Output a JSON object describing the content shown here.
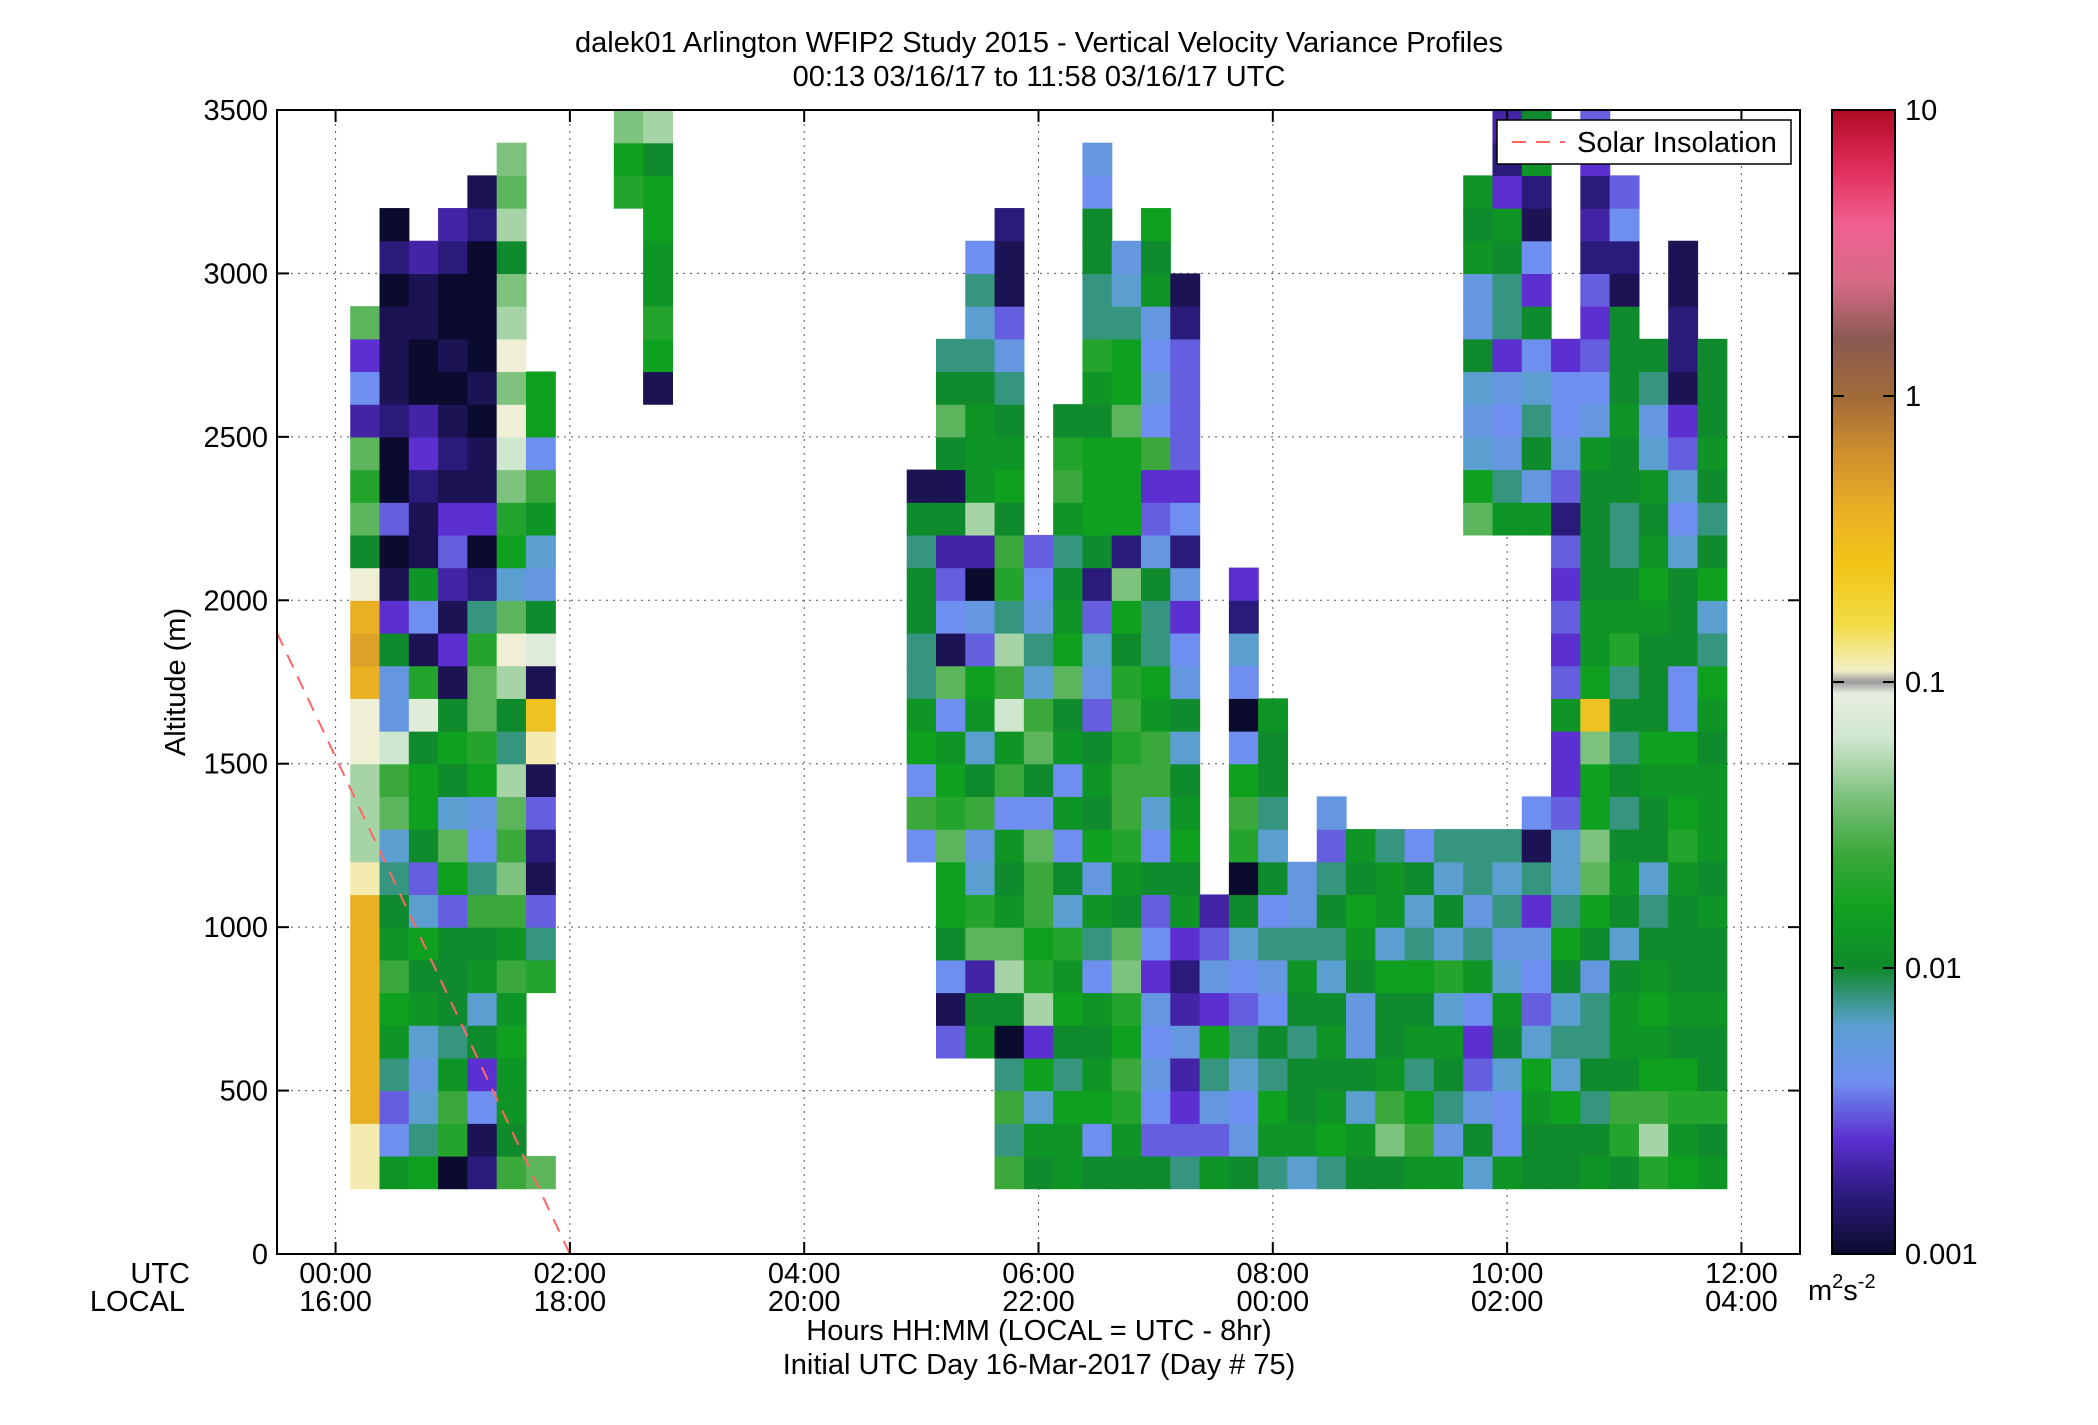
{
  "chart_data": {
    "type": "heatmap",
    "title": "dalek01 Arlington WFIP2 Study 2015 - Vertical Velocity Variance Profiles",
    "subtitle": "00:13 03/16/17 to 11:58 03/16/17  UTC",
    "ylabel": "Altitude (m)",
    "xlabel_lines": [
      "Hours HH:MM  (LOCAL = UTC - 8hr)",
      "Initial UTC Day 16-Mar-2017 (Day # 75)"
    ],
    "x_row_labels": [
      "UTC",
      "LOCAL"
    ],
    "xlim_hours": [
      -0.5,
      12.5
    ],
    "ylim": [
      0,
      3500
    ],
    "x_ticks": [
      {
        "value": 0,
        "utc": "00:00",
        "local": "16:00"
      },
      {
        "value": 2,
        "utc": "02:00",
        "local": "18:00"
      },
      {
        "value": 4,
        "utc": "04:00",
        "local": "20:00"
      },
      {
        "value": 6,
        "utc": "06:00",
        "local": "22:00"
      },
      {
        "value": 8,
        "utc": "08:00",
        "local": "00:00"
      },
      {
        "value": 10,
        "utc": "10:00",
        "local": "02:00"
      },
      {
        "value": 12,
        "utc": "12:00",
        "local": "04:00"
      }
    ],
    "y_ticks": [
      {
        "value": 0,
        "label": "0"
      },
      {
        "value": 500,
        "label": "500"
      },
      {
        "value": 1000,
        "label": "1000"
      },
      {
        "value": 1500,
        "label": "1500"
      },
      {
        "value": 2000,
        "label": "2000"
      },
      {
        "value": 2500,
        "label": "2500"
      },
      {
        "value": 3000,
        "label": "3000"
      },
      {
        "value": 3500,
        "label": "3500"
      }
    ],
    "grid": true,
    "legend": {
      "position": "top-right",
      "label": "Solar Insolation",
      "color": "#ff6666"
    },
    "solar_insolation_line": [
      [
        -0.5,
        1900
      ],
      [
        2.0,
        0
      ]
    ],
    "colorbar": {
      "scale": "log",
      "min": 0.001,
      "max": 10,
      "ticks": [
        {
          "value": 0.001,
          "label": "0.001"
        },
        {
          "value": 0.01,
          "label": "0.01"
        },
        {
          "value": 0.1,
          "label": "0.1"
        },
        {
          "value": 1,
          "label": "1"
        },
        {
          "value": 10,
          "label": "10"
        }
      ],
      "unit_base": "m",
      "unit_exp1": "2",
      "unit_mid": "s",
      "unit_exp2": "-2"
    },
    "grid_spec": {
      "time_start_hours": 0.25,
      "time_step_hours": 0.25,
      "alt_start_m": 200,
      "alt_step_m": 100,
      "value_unit": "log10(m2 s-2)"
    },
    "profiles": [
      {
        "hour": 0.25,
        "values": "-0.9,-0.9,-0.4,-0.4,-0.4,-0.4,-0.4,-0.4,-0.4,-0.9,-1.3,-1.3,-1.3,-1.0,-1.0,-0.4,-0.3,-0.4,-1.0,-2.0,-1.5,-1.7,-1.5,-2.7,-2.4,-2.6,-1.5,,,,,,,,,,"
      },
      {
        "hour": 0.5,
        "values": "-1.9,-2.4,-2.5,-2.1,-1.9,-1.8,-1.6,-1.9,-2.0,-2.1,-2.2,-1.5,-1.6,-1.2,-2.3,-2.3,-2.0,-2.6,-2.9,-3.0,-2.5,-3.0,-3.0,-2.8,-2.9,-2.9,-2.9,-3.0,-2.8,-3.0,,,,,,,"
      },
      {
        "hour": 0.75,
        "values": "-1.8,-2.1,-2.2,-2.3,-2.2,-1.9,-2.0,-1.8,-2.2,-2.5,-2.0,-1.8,-1.8,-2.0,-1.1,-1.7,-2.9,-2.4,-1.9,-2.9,-2.9,-2.8,-2.6,-2.7,-3.0,-3.0,-2.9,-2.9,-2.7,,,,,,,,"
      },
      {
        "hour": 1.0,
        "values": "-3.0,-1.7,-1.6,-1.9,-2.1,-2.0,-2.0,-2.0,-2.5,-1.8,-1.5,-2.2,-2.0,-1.8,-2.0,-2.9,-2.6,-2.9,-2.7,-2.5,-2.6,-2.9,-2.8,-2.9,-3.0,-2.9,-3.0,-3.0,-2.8,-2.7,,,,,,,"
      },
      {
        "hour": 1.25,
        "values": "-2.8,-2.9,-2.4,-2.6,-2.0,-2.2,-1.9,-2.0,-1.6,-2.1,-2.4,-2.3,-1.8,-1.7,-1.5,-1.5,-1.7,-2.1,-2.8,-3.0,-2.6,-2.9,-2.9,-3.0,-2.9,-3.0,-3.0,-3.0,-3.0,-2.8,-2.9,,,,,,"
      },
      {
        "hour": 1.5,
        "values": "-1.6,-2.0,-1.9,-1.9,-1.8,-1.9,-1.6,-1.9,-1.6,-1.4,-1.6,-1.5,-1.3,-2.1,-2.0,-1.3,-1.0,-1.5,-2.2,-1.8,-1.7,-1.4,-1.2,-1.0,-1.4,-1.0,-1.3,-1.4,-2.0,-1.3,-1.5,-1.4,,,,,"
      },
      {
        "hour": 1.75,
        "values": "-1.5,,,,,,-1.7,-2.1,-2.5,-2.9,-2.8,-2.5,-2.9,-0.9,-0.5,-2.9,-1.1,-2.0,-2.3,-2.2,-1.9,-1.6,-2.4,-1.8,-1.8,,,,,,,,,,,,"
      },
      {
        "hour": 2.25,
        "values": ",,,,,,,,,,,,,,,,,,,,,,,,,,,,,,,,,,-1.9,-1.4"
      },
      {
        "hour": 2.5,
        "values": ",,,,,,,,,,,,,,,,,,,,,,,,,,,,,,-1.7,-1.8,-1.4,-1.3,-1.3,-1.3"
      },
      {
        "hour": 2.75,
        "values": ",,,,,,,,,,,,,,,,,,,,,,,,-2.9,-1.8,-1.7,-1.9,-1.9,-1.8,-1.8,-2.0,-1.3,-1.4,-1.2,-1.3"
      },
      {
        "hour": 5.0,
        "values": ",,,,,,,,,,-2.4,-1.6,-2.4,-1.8,-1.9,-2.1,-2.1,-2.0,-2.0,-2.1,-2.0,-2.9,,,,,,,,,,,,,,"
      },
      {
        "hour": 5.25,
        "values": ",,,,-2.5,-2.9,-2.4,-2.0,-1.8,-1.8,-1.5,-1.7,-1.8,-1.9,-2.4,-1.5,-2.9,-2.4,-2.5,-2.7,-2.0,-2.9,-2.0,-1.5,-2.0,-2.1,,,,,,,,,,"
      },
      {
        "hour": 5.5,
        "values": ",,,,-1.9,-2.0,-2.7,-1.5,-1.7,-2.2,-2.3,-1.6,-2.0,-2.2,-1.9,-1.8,-2.5,-2.3,-3.0,-2.7,-1.3,-1.9,-1.9,-1.9,-2.0,-2.1,-2.2,-2.1,-2.4,,,,,,,"
      },
      {
        "hour": 5.75,
        "values": "-1.6,-2.1,-1.6,-2.1,-3.0,-2.0,-1.3,-1.5,-1.9,-2.0,-1.9,-2.4,-1.6,-1.9,-1.2,-1.6,-1.3,-2.1,-1.7,-1.6,-2.0,-1.8,-1.9,-2.0,-2.1,-2.3,-2.5,-2.9,-2.9,-2.8,,,,,,"
      },
      {
        "hour": 6.0,
        "values": "-2.0,-1.9,-2.2,-1.8,-2.6,-1.3,-1.7,-1.8,-1.6,-1.6,-1.5,-2.4,-2.0,-1.5,-1.6,-2.2,-2.1,-2.3,-2.4,-2.5,,,,,,,,,,,,,,,,"
      },
      {
        "hour": 6.25,
        "values": "-1.9,-1.9,-1.8,-2.1,-2.0,-1.8,-1.9,-1.7,-2.2,-2.0,-2.4,-1.9,-2.4,-1.9,-2.0,-1.5,-1.8,-1.9,-2.0,-2.1,-1.9,-1.6,-1.7,-2.0,,,,,,,,,,,,"
      },
      {
        "hour": 6.5,
        "values": "-2.0,-2.4,-1.8,-1.9,-2.0,-1.9,-2.4,-2.1,-1.9,-2.3,-1.8,-2.0,-1.9,-2.0,-2.5,-2.3,-2.2,-2.5,-2.8,-2.0,-1.8,-1.8,-1.8,-2.0,-1.9,-1.7,-2.1,-2.1,-2.0,-2.0,-2.4,-2.3,,,,"
      },
      {
        "hour": 6.75,
        "values": "-2.0,-1.9,-1.7,-1.6,-1.8,-1.7,-1.4,-1.5,-2.0,-1.9,-1.7,-1.6,-1.6,-1.7,-1.6,-1.7,-2.0,-1.8,-1.4,-2.8,-1.8,-1.8,-1.8,-1.5,-1.8,-1.8,-2.1,-2.2,-2.3,,,,,,,"
      },
      {
        "hour": 7.0,
        "values": "-2.0,-2.5,-2.4,-2.3,-2.4,-2.3,-2.6,-2.4,-2.5,-2.0,-2.4,-2.2,-1.6,-1.6,-1.9,-1.8,-2.1,-2.1,-2.0,-2.3,-2.5,-2.6,-1.6,-2.4,-2.3,-2.4,-2.3,-1.9,-2.0,-1.8,,,,,,"
      },
      {
        "hour": 7.25,
        "values": "-2.1,-2.5,-2.6,-2.7,-2.3,-2.7,-2.8,-2.6,-1.9,-2.0,-1.8,-1.9,-2.0,-2.2,-2.0,-2.3,-2.4,-2.6,-2.3,-2.8,-2.4,-2.6,-2.5,-2.5,-2.5,-2.5,-2.8,-2.9,,,,,,,,"
      },
      {
        "hour": 7.5,
        "values": "-1.9,-2.5,-2.3,-2.1,-1.8,-2.6,-2.3,-2.5,-2.7,,,,,,,,,,,,,,,,,,,,,,,,,,"
      },
      {
        "hour": 7.75,
        "values": "-2.0,-2.3,-2.4,-2.2,-2.1,-2.5,-2.4,-2.2,-2.0,-3.0,-1.7,-1.6,-1.8,-2.4,-3.0,-2.4,-2.2,-2.8,-2.6,,,,,,,,,,,,,,,,"
      },
      {
        "hour": 8.0,
        "values": "-2.1,-1.9,-1.8,-2.1,-2.0,-2.4,-2.3,-2.1,-2.4,-2.0,-2.2,-2.1,-2.0,-2.0,-1.9,,,,,,,,,,,,,,,,,,,,,-2.0"
      },
      {
        "hour": 8.25,
        "values": "-2.2,-1.9,-2.0,-2.0,-2.1,-2.0,-1.9,-2.1,-2.3,-2.3,,,,,,,,,,,,,,,,,,,,,,,,,,-2.4"
      },
      {
        "hour": 8.5,
        "values": "-2.1,-1.8,-1.9,-2.0,-1.9,-2.0,-2.2,-2.1,-2.0,-2.1,-2.5,-2.3,,,,,,,,,,,,,,,,,,,,,,,,"
      },
      {
        "hour": 8.75,
        "values": "-2.0,-1.9,-2.2,-2.0,-2.3,-2.3,-2.0,-1.9,-1.8,-2.0,-1.9,,,,,,,,,,,,,,,,,,,,,,,,,"
      },
      {
        "hour": 9.0,
        "values": "-2.0,-1.4,-1.6,-1.9,-2.0,-2.0,-1.8,-2.2,-1.9,-1.9,-2.1,,,,,,,,,,,,,,,,,,,,,,,,,"
      },
      {
        "hour": 9.25,
        "values": "-1.9,-1.6,-1.8,-2.1,-1.9,-2.0,-1.8,-2.1,-2.2,-2.0,-2.4,,,,,,,,,,,,,,,,,,,,,,,,,"
      },
      {
        "hour": 9.5,
        "values": "-1.9,-2.3,-2.1,-2.0,-1.9,-2.2,-1.7,-2.2,-2.0,-2.2,-2.1,,,,,,,,,,,,,,,,,,,,,,,,,"
      },
      {
        "hour": 9.75,
        "values": "-2.2,-2.0,-2.3,-2.5,-2.6,-2.4,-1.9,-2.1,-2.3,-2.1,-2.1,,,,,,,,,,-1.5,-1.8,-2.2,-2.3,-2.2,-2.0,-2.3,-2.3,-1.9,-2.0,-1.9,,,,,"
      },
      {
        "hour": 10.0,
        "values": "-1.9,-2.4,-2.4,-2.2,-2.0,-1.9,-2.2,-2.3,-2.1,-2.2,-2.1,,,,,,,,,,-1.9,-2.1,-2.3,-2.4,-2.3,-2.6,-2.1,-2.1,-2.0,-1.9,-2.6,-2.8,-2.7,,,,"
      },
      {
        "hour": 10.25,
        "values": "-2.0,-2.0,-1.9,-1.8,-2.2,-2.5,-2.4,-2.3,-2.6,-2.1,-2.9,-2.4,,,,,,,,,-1.9,-2.3,-2.0,-2.1,-2.2,-2.4,-2.0,-2.6,-2.4,-2.9,-2.8,-1.9,-2.0,-1.9,,"
      },
      {
        "hour": 10.5,
        "values": "-2.0,-2.0,-1.8,-2.2,-2.1,-2.2,-2.0,-1.8,-2.1,-2.2,-2.2,-2.5,-2.6,-2.6,-1.9,-2.5,-2.6,-2.5,-2.6,-2.5,-2.8,-2.5,-2.3,-2.4,-2.4,-2.6,,,,,,,,,,"
      },
      {
        "hour": 10.75,
        "values": "-1.9,-2.0,-2.1,-2.0,-2.1,-2.1,-2.3,-2.0,-1.8,-1.5,-1.4,-1.8,-1.8,-1.4,-0.5,-1.8,-1.9,-1.9,-2.0,-2.0,-2.0,-2.0,-1.9,-2.3,-2.4,-2.5,-2.6,-2.5,-2.8,-2.7,-2.8,-2.6,-2.5,,,"
      },
      {
        "hour": 11.0,
        "values": "-2.0,-1.7,-1.6,-2.0,-1.9,-1.9,-2.0,-2.2,-2.0,-1.9,-2.0,-2.1,-2.0,-2.1,-2.0,-2.1,-1.7,-1.9,-2.0,-2.1,-2.1,-2.0,-2.0,-1.9,-2.0,-2.0,-2.0,-2.9,-2.8,-2.4,-2.5,,,,,"
      },
      {
        "hour": 11.25,
        "values": "-1.7,-1.3,-1.6,-1.8,-1.9,-1.8,-1.9,-2.0,-2.1,-2.2,-2.0,-2.0,-1.9,-1.8,-2.0,-2.0,-2.0,-1.9,-1.8,-1.9,-2.0,-1.9,-2.2,-2.3,-2.1,-2.0,,,,,,,,,,"
      },
      {
        "hour": 11.5,
        "values": "-1.8,-1.9,-1.7,-1.8,-2.0,-1.9,-2.0,-2.0,-2.0,-1.9,-1.7,-1.8,-1.9,-1.8,-2.4,-2.4,-2.0,-2.0,-2.0,-2.2,-2.4,-2.2,-2.5,-2.6,-2.9,-2.8,-2.8,-2.9,-2.9,,,,,,,"
      },
      {
        "hour": 11.75,
        "values": "-1.9,-2.0,-1.7,-2.0,-2.0,-1.9,-2.0,-2.0,-1.9,-2.0,-1.9,-1.9,-1.9,-2.0,-1.9,-1.8,-2.1,-2.2,-1.8,-2.0,-2.1,-2.0,-1.9,-2.0,-2.0,-2.0,,,,,,,,,,"
      }
    ]
  }
}
